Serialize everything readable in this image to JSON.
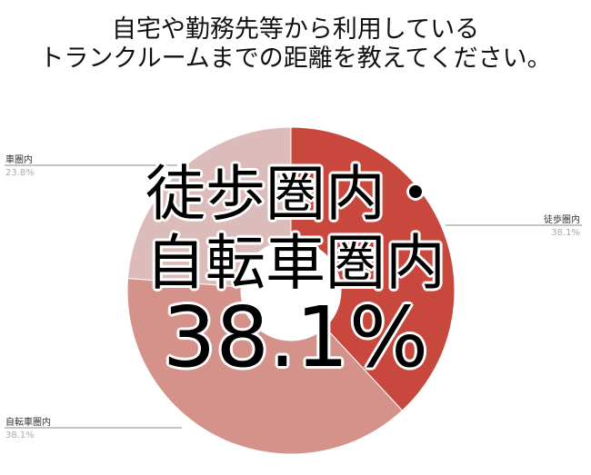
{
  "chart_data": {
    "type": "pie",
    "title_lines": [
      "自宅や勤務先等から利用している",
      "トランクルームまでの距離を教えてください。"
    ],
    "slices": [
      {
        "label": "徒歩圏内",
        "value": 38.1,
        "display": "38.1%",
        "color": "#c9483d"
      },
      {
        "label": "自転車圏内",
        "value": 38.1,
        "display": "38.1%",
        "color": "#d4928b"
      },
      {
        "label": "車圏内",
        "value": 23.8,
        "display": "23.8%",
        "color": "#dbbcbb"
      }
    ],
    "donut": true,
    "overlay": {
      "line1": "徒歩圏内・",
      "line2": "自転車圏内",
      "line3": "38.1%"
    }
  }
}
